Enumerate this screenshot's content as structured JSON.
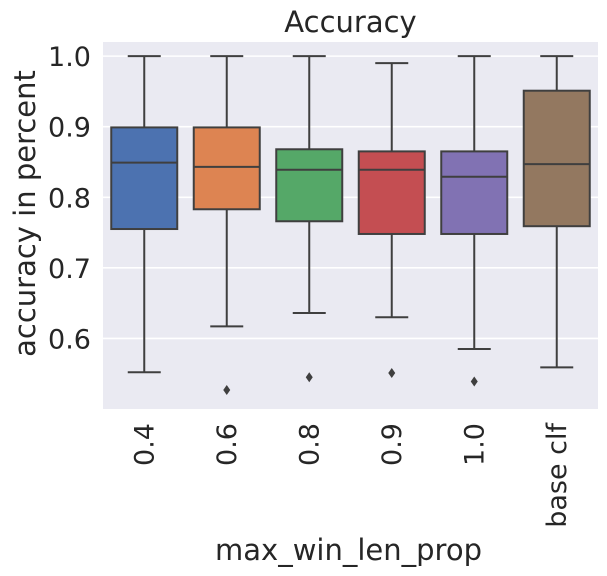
{
  "chart_data": {
    "type": "box",
    "title": "Accuracy",
    "xlabel": "max_win_len_prop",
    "ylabel": "accuracy in percent",
    "ylim": [
      0.5,
      1.02
    ],
    "yticks": [
      "0.6",
      "0.7",
      "0.8",
      "0.9",
      "1.0"
    ],
    "grid": true,
    "background": "#eaeaf2",
    "categories": [
      "0.4",
      "0.6",
      "0.8",
      "0.9",
      "1.0",
      "base clf"
    ],
    "boxes": [
      {
        "category": "0.4",
        "whisker_low": 0.552,
        "q1": 0.755,
        "median": 0.849,
        "q3": 0.899,
        "whisker_high": 1.0,
        "outliers": [],
        "color": "#4c72b0"
      },
      {
        "category": "0.6",
        "whisker_low": 0.617,
        "q1": 0.783,
        "median": 0.843,
        "q3": 0.899,
        "whisker_high": 1.0,
        "outliers": [
          0.527
        ],
        "color": "#dd8452"
      },
      {
        "category": "0.8",
        "whisker_low": 0.636,
        "q1": 0.766,
        "median": 0.839,
        "q3": 0.868,
        "whisker_high": 1.0,
        "outliers": [
          0.545
        ],
        "color": "#55a868"
      },
      {
        "category": "0.9",
        "whisker_low": 0.63,
        "q1": 0.748,
        "median": 0.839,
        "q3": 0.865,
        "whisker_high": 0.99,
        "outliers": [
          0.551
        ],
        "color": "#c44e52"
      },
      {
        "category": "1.0",
        "whisker_low": 0.585,
        "q1": 0.748,
        "median": 0.829,
        "q3": 0.865,
        "whisker_high": 1.0,
        "outliers": [
          0.539
        ],
        "color": "#8172b3"
      },
      {
        "category": "base clf",
        "whisker_low": 0.559,
        "q1": 0.759,
        "median": 0.847,
        "q3": 0.951,
        "whisker_high": 1.0,
        "outliers": [],
        "color": "#937860"
      }
    ]
  }
}
